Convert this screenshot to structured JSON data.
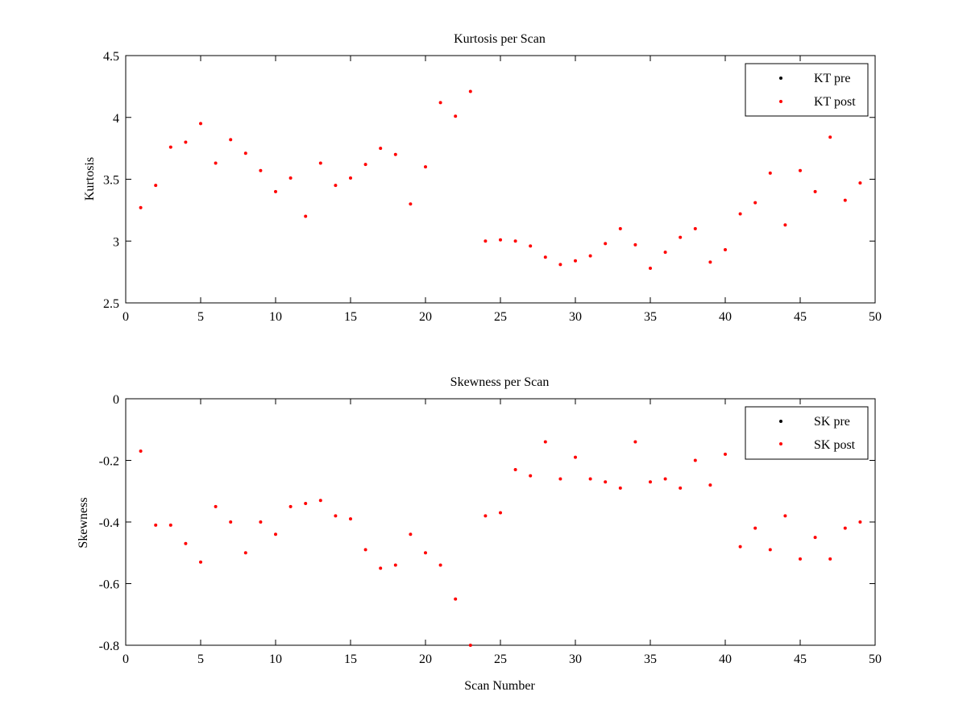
{
  "chart_data": [
    {
      "type": "scatter",
      "title": "Kurtosis per Scan",
      "xlabel": "",
      "ylabel": "Kurtosis",
      "xlim": [
        0,
        50
      ],
      "ylim": [
        2.5,
        4.5
      ],
      "xticks": [
        "0",
        "5",
        "10",
        "15",
        "20",
        "25",
        "30",
        "35",
        "40",
        "45",
        "50"
      ],
      "yticks": [
        "2.5",
        "3",
        "3.5",
        "4",
        "4.5"
      ],
      "legend_position": "top-right",
      "series": [
        {
          "name": "KT pre",
          "color": "#000000",
          "x": [],
          "y": []
        },
        {
          "name": "KT post",
          "color": "#ff0000",
          "x": [
            1,
            2,
            3,
            4,
            5,
            6,
            7,
            8,
            9,
            10,
            11,
            12,
            13,
            14,
            15,
            16,
            17,
            18,
            19,
            20,
            21,
            22,
            23,
            24,
            25,
            26,
            27,
            28,
            29,
            30,
            31,
            32,
            33,
            34,
            35,
            36,
            37,
            38,
            39,
            40,
            41,
            42,
            43,
            44,
            45,
            46,
            47,
            48,
            49
          ],
          "y": [
            3.27,
            3.45,
            3.76,
            3.8,
            3.95,
            3.63,
            3.82,
            3.71,
            3.57,
            3.4,
            3.51,
            3.2,
            3.63,
            3.45,
            3.51,
            3.62,
            3.75,
            3.7,
            3.3,
            3.6,
            4.12,
            4.01,
            4.21,
            3.0,
            3.01,
            3.0,
            2.96,
            2.87,
            2.81,
            2.84,
            2.88,
            2.98,
            3.1,
            2.97,
            2.78,
            2.91,
            3.03,
            3.1,
            2.83,
            2.93,
            3.22,
            3.31,
            3.55,
            3.13,
            3.57,
            3.4,
            3.84,
            3.33,
            3.47
          ]
        }
      ]
    },
    {
      "type": "scatter",
      "title": "Skewness per Scan",
      "xlabel": "Scan Number",
      "ylabel": "Skewness",
      "xlim": [
        0,
        50
      ],
      "ylim": [
        -0.8,
        0
      ],
      "xticks": [
        "0",
        "5",
        "10",
        "15",
        "20",
        "25",
        "30",
        "35",
        "40",
        "45",
        "50"
      ],
      "yticks": [
        "-0.8",
        "-0.6",
        "-0.4",
        "-0.2",
        "0"
      ],
      "legend_position": "top-right",
      "series": [
        {
          "name": "SK pre",
          "color": "#000000",
          "x": [],
          "y": []
        },
        {
          "name": "SK post",
          "color": "#ff0000",
          "x": [
            1,
            2,
            3,
            4,
            5,
            6,
            7,
            8,
            9,
            10,
            11,
            12,
            13,
            14,
            15,
            16,
            17,
            18,
            19,
            20,
            21,
            22,
            23,
            24,
            25,
            26,
            27,
            28,
            29,
            30,
            31,
            32,
            33,
            34,
            35,
            36,
            37,
            38,
            39,
            40,
            41,
            42,
            43,
            44,
            45,
            46,
            47,
            48,
            49
          ],
          "y": [
            -0.17,
            -0.41,
            -0.41,
            -0.47,
            -0.53,
            -0.35,
            -0.4,
            -0.5,
            -0.4,
            -0.44,
            -0.35,
            -0.34,
            -0.33,
            -0.38,
            -0.39,
            -0.49,
            -0.55,
            -0.54,
            -0.44,
            -0.5,
            -0.54,
            -0.65,
            -0.8,
            -0.38,
            -0.37,
            -0.23,
            -0.25,
            -0.14,
            -0.26,
            -0.19,
            -0.26,
            -0.27,
            -0.29,
            -0.14,
            -0.27,
            -0.26,
            -0.29,
            -0.2,
            -0.28,
            -0.18,
            -0.48,
            -0.42,
            -0.49,
            -0.38,
            -0.52,
            -0.45,
            -0.52,
            -0.42,
            -0.4
          ]
        }
      ]
    }
  ]
}
